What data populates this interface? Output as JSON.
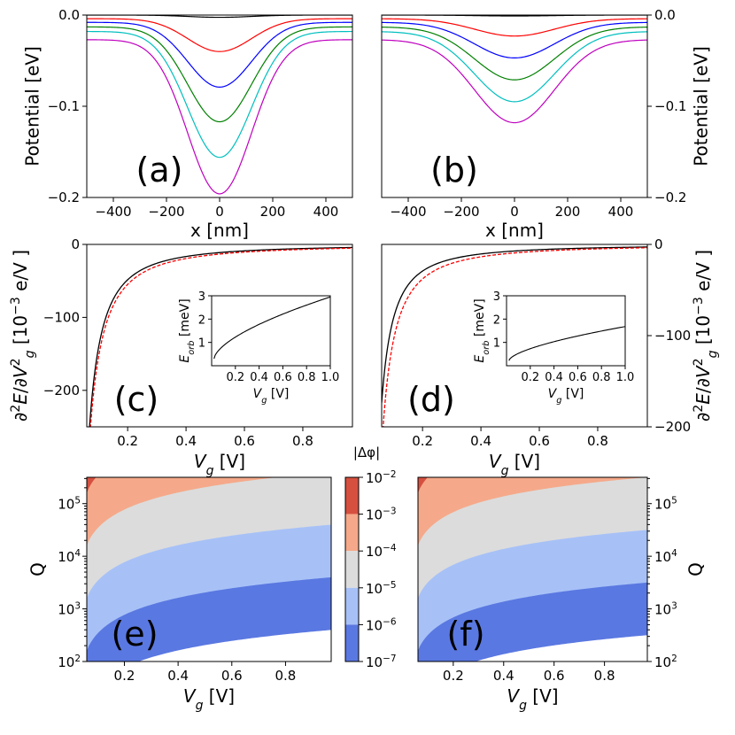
{
  "figure": {
    "colorbar": {
      "label": "|Δφ|",
      "ticks": [
        "10^-2",
        "10^-3",
        "10^-4",
        "10^-5",
        "10^-6",
        "10^-7"
      ],
      "colors": [
        "#d6503f",
        "#f5a98a",
        "#dcdcdc",
        "#a7c1f7",
        "#5a78e1",
        "#ffffff"
      ]
    }
  },
  "chart_data": [
    {
      "panel": "(a)",
      "type": "line",
      "xlabel": "x [nm]",
      "ylabel": "Potential [eV]",
      "xlim": [
        -500,
        500
      ],
      "ylim": [
        -0.2,
        0.0
      ],
      "xticks": [
        -400,
        -200,
        0,
        200,
        400
      ],
      "yticks": [
        0.0,
        -0.1,
        -0.2
      ],
      "ytick_labels": [
        "0.0",
        "-0.1",
        "-0.2"
      ],
      "ylabel_side": "left",
      "series": [
        {
          "name": "curve-1",
          "color": "#000000",
          "offset": 0.0,
          "depth": 0.0025
        },
        {
          "name": "curve-2",
          "color": "#ff0000",
          "offset": -0.004,
          "depth": 0.036
        },
        {
          "name": "curve-3",
          "color": "#0000ff",
          "offset": -0.008,
          "depth": 0.071
        },
        {
          "name": "curve-4",
          "color": "#008000",
          "offset": -0.013,
          "depth": 0.104
        },
        {
          "name": "curve-5",
          "color": "#00bfbf",
          "offset": -0.018,
          "depth": 0.138
        },
        {
          "name": "curve-6",
          "color": "#bf00bf",
          "offset": -0.027,
          "depth": 0.169
        }
      ],
      "well_width_nm": 120
    },
    {
      "panel": "(b)",
      "type": "line",
      "xlabel": "x [nm]",
      "ylabel": "Potential [eV]",
      "xlim": [
        -500,
        500
      ],
      "ylim": [
        -0.2,
        0.0
      ],
      "xticks": [
        -400,
        -200,
        0,
        200,
        400
      ],
      "yticks": [
        0.0,
        -0.1,
        -0.2
      ],
      "ytick_labels": [
        "0.0",
        "-0.1",
        "-0.2"
      ],
      "ylabel_side": "right",
      "series": [
        {
          "name": "curve-1",
          "color": "#000000",
          "offset": 0.0,
          "depth": 0.001
        },
        {
          "name": "curve-2",
          "color": "#ff0000",
          "offset": -0.004,
          "depth": 0.019
        },
        {
          "name": "curve-3",
          "color": "#0000ff",
          "offset": -0.008,
          "depth": 0.039
        },
        {
          "name": "curve-4",
          "color": "#008000",
          "offset": -0.013,
          "depth": 0.058
        },
        {
          "name": "curve-5",
          "color": "#00bfbf",
          "offset": -0.018,
          "depth": 0.077
        },
        {
          "name": "curve-6",
          "color": "#bf00bf",
          "offset": -0.027,
          "depth": 0.091
        }
      ],
      "well_width_nm": 150
    },
    {
      "panel": "(c)",
      "type": "line",
      "xlabel": "V_g [V]",
      "ylabel": "∂²E/∂V_g² [10⁻³ e/V ]",
      "xlim": [
        0.06,
        0.97
      ],
      "ylim": [
        -250,
        0
      ],
      "xticks": [
        0.2,
        0.4,
        0.6,
        0.8
      ],
      "yticks": [
        0,
        -100,
        -200
      ],
      "ylabel_side": "left",
      "series": [
        {
          "name": "solid",
          "color": "#000000",
          "style": "solid",
          "A": 4.0,
          "p": 1.55
        },
        {
          "name": "dashed",
          "color": "#ff0000",
          "style": "dashed",
          "A": 4.9,
          "p": 1.5
        }
      ],
      "inset": {
        "xlabel": "V_g [V]",
        "ylabel": "E_orb [meV]",
        "xlim": [
          0.0,
          1.0
        ],
        "ylim": [
          0,
          3
        ],
        "xticks": [
          0.2,
          0.4,
          0.6,
          0.8,
          1.0
        ],
        "yticks": [
          1,
          2,
          3
        ],
        "curve": {
          "y0": 0.3,
          "y1": 2.95,
          "power": 0.62
        }
      }
    },
    {
      "panel": "(d)",
      "type": "line",
      "xlabel": "V_g [V]",
      "ylabel": "∂²E/∂V_g² [10⁻³ e/V ]",
      "xlim": [
        0.06,
        0.97
      ],
      "ylim": [
        -200,
        0
      ],
      "xticks": [
        0.2,
        0.4,
        0.6,
        0.8
      ],
      "yticks": [
        0,
        -100,
        -200
      ],
      "ylabel_side": "right",
      "series": [
        {
          "name": "solid",
          "color": "#000000",
          "style": "solid",
          "A": 2.7,
          "p": 1.48
        },
        {
          "name": "dashed",
          "color": "#ff0000",
          "style": "dashed",
          "A": 3.5,
          "p": 1.48
        }
      ],
      "inset": {
        "xlabel": "V_g [V]",
        "ylabel": "E_orb [meV]",
        "xlim": [
          0.0,
          1.0
        ],
        "ylim": [
          0,
          3
        ],
        "xticks": [
          0.2,
          0.4,
          0.6,
          0.8,
          1.0
        ],
        "yticks": [
          1,
          2,
          3
        ],
        "curve": {
          "y0": 0.22,
          "y1": 1.68,
          "power": 0.62
        }
      }
    },
    {
      "panel": "(e)",
      "type": "heatmap",
      "xlabel": "V_g [V]",
      "ylabel": "Q",
      "xlim": [
        0.06,
        0.97
      ],
      "ylim_log10": [
        2,
        5.5
      ],
      "xticks": [
        0.2,
        0.4,
        0.6,
        0.8
      ],
      "yticks_log10": [
        2,
        3,
        4,
        5
      ],
      "ylabel_side": "left",
      "boundaries": [
        {
          "log_q_at_xmin": 1.2,
          "log_q_at_xmax": 2.6
        },
        {
          "log_q_at_xmin": 2.2,
          "log_q_at_xmax": 3.6
        },
        {
          "log_q_at_xmin": 3.2,
          "log_q_at_xmax": 4.6
        },
        {
          "log_q_at_xmin": 4.2,
          "log_q_at_xmax": 5.6
        },
        {
          "log_q_at_xmin": 5.2,
          "log_q_at_xmax": 6.6
        }
      ]
    },
    {
      "panel": "(f)",
      "type": "heatmap",
      "xlabel": "V_g [V]",
      "ylabel": "Q",
      "xlim": [
        0.06,
        0.97
      ],
      "ylim_log10": [
        2,
        5.5
      ],
      "xticks": [
        0.2,
        0.4,
        0.6,
        0.8
      ],
      "yticks_log10": [
        2,
        3,
        4,
        5
      ],
      "ylabel_side": "right",
      "boundaries": [
        {
          "log_q_at_xmin": 1.2,
          "log_q_at_xmax": 2.5
        },
        {
          "log_q_at_xmin": 2.2,
          "log_q_at_xmax": 3.5
        },
        {
          "log_q_at_xmin": 3.2,
          "log_q_at_xmax": 4.5
        },
        {
          "log_q_at_xmin": 4.2,
          "log_q_at_xmax": 5.5
        },
        {
          "log_q_at_xmin": 5.2,
          "log_q_at_xmax": 6.5
        }
      ]
    }
  ]
}
